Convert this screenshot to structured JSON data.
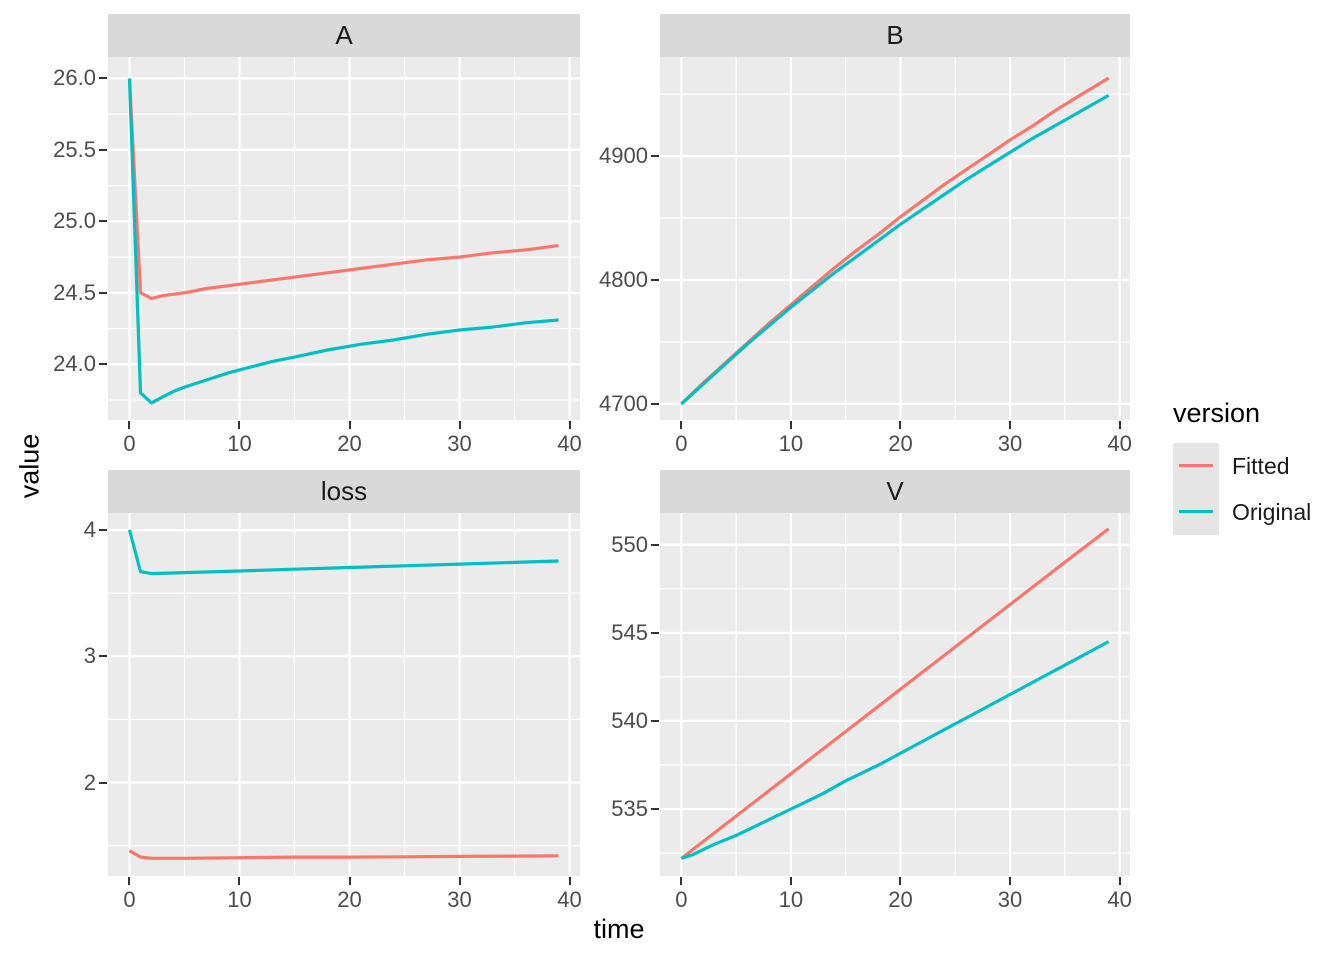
{
  "colors": {
    "fitted": "#F8766D",
    "original": "#00BFC4",
    "panel_background": "#EBEBEB",
    "strip_background": "#D9D9D9",
    "gridline": "#FFFFFF",
    "tick_text": "#4D4D4D",
    "axis_title_text": "#000000",
    "legend_key_background": "#E5E5E5"
  },
  "axes": {
    "x_title": "time",
    "y_title": "value"
  },
  "legend": {
    "title": "version",
    "position": "right",
    "items": [
      {
        "label": "Fitted",
        "color": "#F8766D"
      },
      {
        "label": "Original",
        "color": "#00BFC4"
      }
    ]
  },
  "chart_data": {
    "type": "line",
    "title": "",
    "xlabel": "time",
    "ylabel": "value",
    "legend_title": "version",
    "legend_position": "right",
    "grid": true,
    "facets": true,
    "series_names": [
      "Fitted",
      "Original"
    ],
    "xlim": [
      -1.95,
      40.95
    ],
    "x_ticks": [
      0,
      10,
      20,
      30,
      40
    ],
    "x_tick_labels": [
      "0",
      "10",
      "20",
      "30",
      "40"
    ],
    "x_minor": [
      5,
      15,
      25,
      35
    ],
    "panels": [
      {
        "id": "A",
        "title": "A",
        "ylim": [
          23.61,
          26.15
        ],
        "yticks": [
          24.0,
          24.5,
          25.0,
          25.5,
          26.0
        ],
        "ytick_labels": [
          "24.0",
          "24.5",
          "25.0",
          "25.5",
          "26.0"
        ],
        "yminor": [
          23.75,
          24.25,
          24.75,
          25.25,
          25.75
        ],
        "series": [
          {
            "name": "Fitted",
            "color": "#F8766D",
            "points": [
              [
                0,
                26.0
              ],
              [
                1,
                24.5
              ],
              [
                2,
                24.46
              ],
              [
                3,
                24.48
              ],
              [
                4,
                24.49
              ],
              [
                5,
                24.5
              ],
              [
                7,
                24.53
              ],
              [
                9,
                24.55
              ],
              [
                11,
                24.57
              ],
              [
                13,
                24.59
              ],
              [
                15,
                24.61
              ],
              [
                18,
                24.64
              ],
              [
                21,
                24.67
              ],
              [
                24,
                24.7
              ],
              [
                27,
                24.73
              ],
              [
                30,
                24.75
              ],
              [
                33,
                24.78
              ],
              [
                36,
                24.8
              ],
              [
                39,
                24.83
              ]
            ]
          },
          {
            "name": "Original",
            "color": "#00BFC4",
            "points": [
              [
                0,
                26.0
              ],
              [
                1,
                23.8
              ],
              [
                2,
                23.73
              ],
              [
                3,
                23.77
              ],
              [
                4,
                23.81
              ],
              [
                5,
                23.84
              ],
              [
                7,
                23.89
              ],
              [
                9,
                23.94
              ],
              [
                11,
                23.98
              ],
              [
                13,
                24.02
              ],
              [
                15,
                24.05
              ],
              [
                18,
                24.1
              ],
              [
                21,
                24.14
              ],
              [
                24,
                24.17
              ],
              [
                27,
                24.21
              ],
              [
                30,
                24.24
              ],
              [
                33,
                24.26
              ],
              [
                36,
                24.29
              ],
              [
                39,
                24.31
              ]
            ]
          }
        ]
      },
      {
        "id": "B",
        "title": "B",
        "ylim": [
          4687,
          4980
        ],
        "yticks": [
          4700,
          4800,
          4900
        ],
        "ytick_labels": [
          "4700",
          "4800",
          "4900"
        ],
        "yminor": [
          4750,
          4850,
          4950
        ],
        "series": [
          {
            "name": "Fitted",
            "color": "#F8766D",
            "points": [
              [
                0,
                4700
              ],
              [
                2,
                4717
              ],
              [
                4,
                4733
              ],
              [
                6,
                4749
              ],
              [
                8,
                4765
              ],
              [
                10,
                4780
              ],
              [
                12,
                4795
              ],
              [
                14,
                4810
              ],
              [
                16,
                4824
              ],
              [
                18,
                4837
              ],
              [
                20,
                4851
              ],
              [
                22,
                4864
              ],
              [
                24,
                4877
              ],
              [
                26,
                4889
              ],
              [
                28,
                4901
              ],
              [
                30,
                4913
              ],
              [
                32,
                4924
              ],
              [
                34,
                4936
              ],
              [
                36,
                4947
              ],
              [
                39,
                4963
              ]
            ]
          },
          {
            "name": "Original",
            "color": "#00BFC4",
            "points": [
              [
                0,
                4700
              ],
              [
                2,
                4716
              ],
              [
                4,
                4732
              ],
              [
                6,
                4748
              ],
              [
                8,
                4763
              ],
              [
                10,
                4778
              ],
              [
                12,
                4792
              ],
              [
                14,
                4806
              ],
              [
                16,
                4819
              ],
              [
                18,
                4832
              ],
              [
                20,
                4845
              ],
              [
                22,
                4857
              ],
              [
                24,
                4869
              ],
              [
                26,
                4881
              ],
              [
                28,
                4892
              ],
              [
                30,
                4903
              ],
              [
                32,
                4914
              ],
              [
                34,
                4924
              ],
              [
                36,
                4934
              ],
              [
                39,
                4949
              ]
            ]
          }
        ]
      },
      {
        "id": "loss",
        "title": "loss",
        "ylim": [
          1.26,
          4.135
        ],
        "yticks": [
          2,
          3,
          4
        ],
        "ytick_labels": [
          "2",
          "3",
          "4"
        ],
        "yminor": [
          1.5,
          2.5,
          3.5
        ],
        "series": [
          {
            "name": "Fitted",
            "color": "#F8766D",
            "points": [
              [
                0,
                1.46
              ],
              [
                1,
                1.41
              ],
              [
                2,
                1.4
              ],
              [
                5,
                1.4
              ],
              [
                10,
                1.405
              ],
              [
                15,
                1.41
              ],
              [
                20,
                1.41
              ],
              [
                25,
                1.412
              ],
              [
                30,
                1.415
              ],
              [
                35,
                1.418
              ],
              [
                39,
                1.42
              ]
            ]
          },
          {
            "name": "Original",
            "color": "#00BFC4",
            "points": [
              [
                0,
                4.0
              ],
              [
                1,
                3.67
              ],
              [
                2,
                3.655
              ],
              [
                5,
                3.663
              ],
              [
                10,
                3.676
              ],
              [
                15,
                3.69
              ],
              [
                20,
                3.703
              ],
              [
                25,
                3.717
              ],
              [
                30,
                3.73
              ],
              [
                35,
                3.744
              ],
              [
                39,
                3.755
              ]
            ]
          }
        ]
      },
      {
        "id": "V",
        "title": "V",
        "ylim": [
          531.2,
          551.8
        ],
        "yticks": [
          535,
          540,
          545,
          550
        ],
        "ytick_labels": [
          "535",
          "540",
          "545",
          "550"
        ],
        "yminor": [
          532.5,
          537.5,
          542.5,
          547.5
        ],
        "series": [
          {
            "name": "Fitted",
            "color": "#F8766D",
            "points": [
              [
                0,
                532.2
              ],
              [
                5,
                534.6
              ],
              [
                10,
                537.0
              ],
              [
                15,
                539.4
              ],
              [
                20,
                541.8
              ],
              [
                25,
                544.2
              ],
              [
                30,
                546.6
              ],
              [
                35,
                549.0
              ],
              [
                39,
                550.9
              ]
            ]
          },
          {
            "name": "Original",
            "color": "#00BFC4",
            "points": [
              [
                0,
                532.2
              ],
              [
                1,
                532.4
              ],
              [
                2,
                532.7
              ],
              [
                3,
                533.0
              ],
              [
                5,
                533.5
              ],
              [
                7,
                534.1
              ],
              [
                9,
                534.7
              ],
              [
                11,
                535.3
              ],
              [
                13,
                535.9
              ],
              [
                15,
                536.6
              ],
              [
                18,
                537.5
              ],
              [
                21,
                538.5
              ],
              [
                24,
                539.5
              ],
              [
                27,
                540.5
              ],
              [
                30,
                541.5
              ],
              [
                33,
                542.5
              ],
              [
                36,
                543.5
              ],
              [
                39,
                544.5
              ]
            ]
          }
        ]
      }
    ]
  }
}
